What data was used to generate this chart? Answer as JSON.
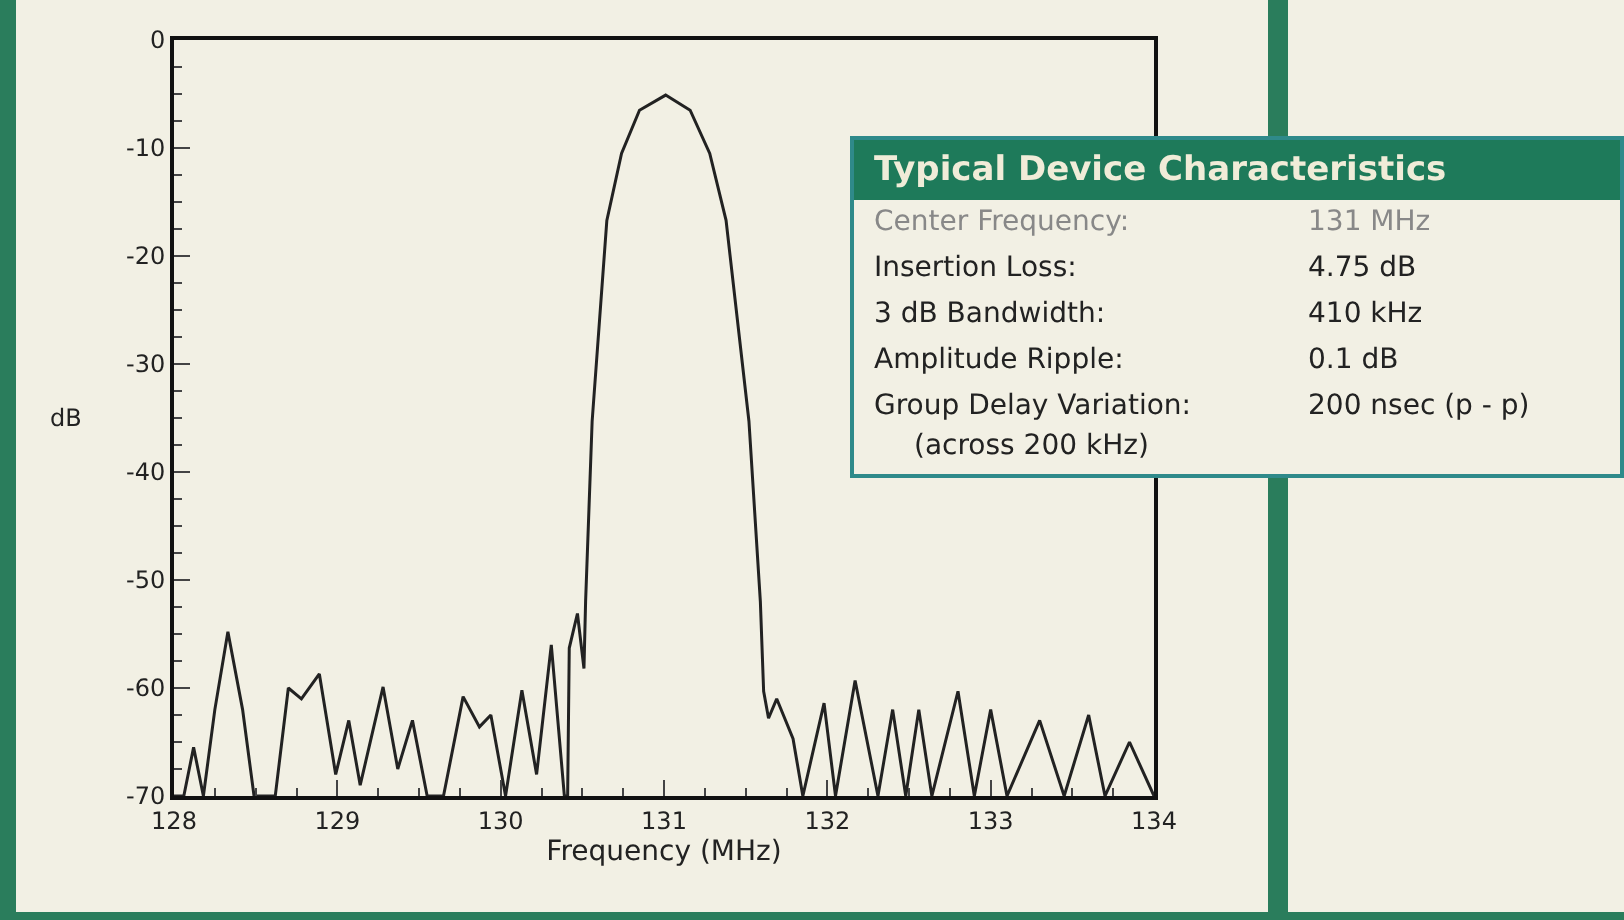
{
  "chart_data": {
    "type": "line",
    "xlabel": "Frequency (MHz)",
    "ylabel": "dB",
    "x": [
      128.0,
      128.06,
      128.12,
      128.18,
      128.25,
      128.33,
      128.42,
      128.49,
      128.62,
      128.7,
      128.78,
      128.89,
      128.99,
      129.07,
      129.14,
      129.28,
      129.37,
      129.46,
      129.55,
      129.65,
      129.77,
      129.87,
      129.94,
      130.03,
      130.13,
      130.22,
      130.31,
      130.39,
      130.41,
      130.42,
      130.47,
      130.51,
      130.52,
      130.56,
      130.65,
      130.74,
      130.85,
      131.01,
      131.16,
      131.28,
      131.38,
      131.52,
      131.59,
      131.61,
      131.64,
      131.69,
      131.79,
      131.85,
      131.98,
      132.05,
      132.17,
      132.31,
      132.4,
      132.48,
      132.56,
      132.64,
      132.8,
      132.9,
      133.0,
      133.1,
      133.3,
      133.45,
      133.6,
      133.7,
      133.85,
      134.0
    ],
    "series": [
      {
        "color": "#222222",
        "values": [
          -70,
          -70,
          -65.5,
          -70,
          -62,
          -54.8,
          -62,
          -70,
          -70,
          -60,
          -61,
          -58.7,
          -68,
          -63,
          -69,
          -59.9,
          -67.5,
          -63,
          -70,
          -70,
          -60.8,
          -63.6,
          -62.5,
          -70,
          -60.2,
          -68,
          -56,
          -70,
          -70,
          -56.3,
          -53.1,
          -58.2,
          -52,
          -35.3,
          -16.7,
          -10.5,
          -6.5,
          -5.1,
          -6.5,
          -10.5,
          -16.7,
          -35.3,
          -52,
          -60.3,
          -62.8,
          -61,
          -64.7,
          -70,
          -61.4,
          -70,
          -59.3,
          -70,
          -62,
          -70,
          -62,
          -70,
          -60.3,
          -70,
          -62,
          -70,
          -63,
          -70,
          -62.5,
          -70,
          -65,
          -70
        ]
      }
    ],
    "xlim": [
      128,
      134
    ],
    "xticks": [
      128,
      129,
      130,
      131,
      132,
      133,
      134
    ],
    "ylim": [
      -70,
      0
    ],
    "yticks": [
      0,
      -10,
      -20,
      -30,
      -40,
      -50,
      -60,
      -70
    ],
    "grid": false,
    "legend": false,
    "marker": "none",
    "line_style": "solid",
    "annotations": [
      "Typical Device Characteristics",
      "Center Frequency:",
      "131 MHz",
      "Insertion Loss:",
      "4.75 dB",
      "3 dB Bandwidth:",
      "410  kHz",
      "Amplitude Ripple:",
      "0.1 dB",
      "Group Delay Variation:",
      "200 nsec (p - p)",
      "(across 200 kHz)"
    ]
  }
}
